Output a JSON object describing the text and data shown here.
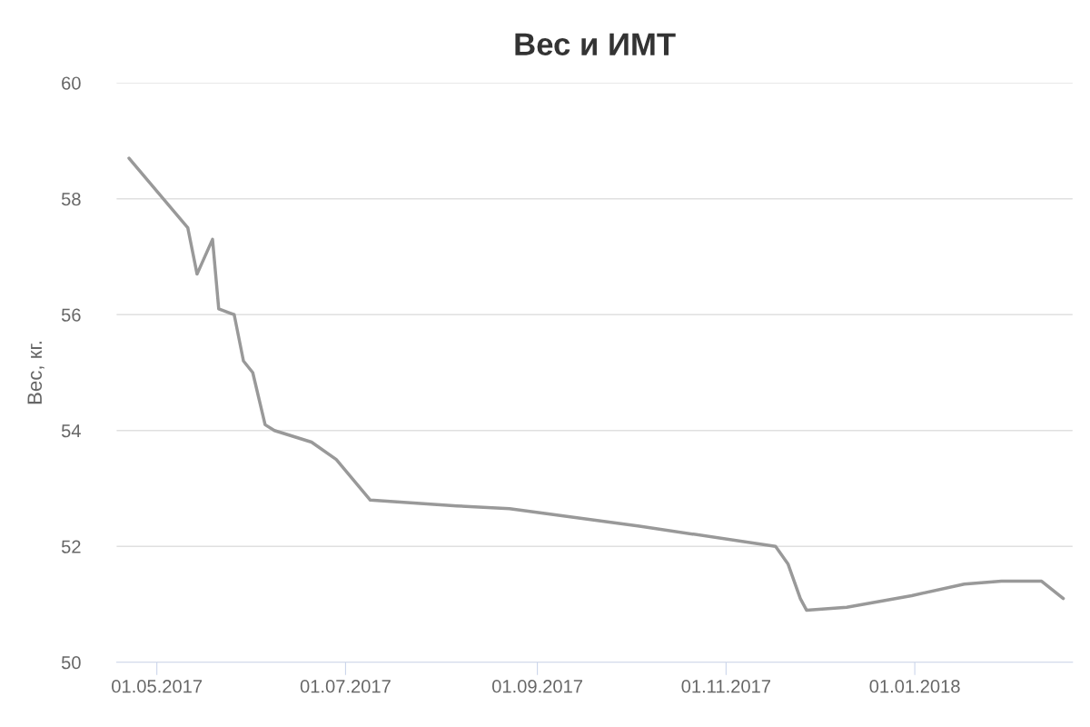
{
  "chart_data": {
    "type": "line",
    "title": "Вес и ИМТ",
    "ylabel": "Вес, кг.",
    "x": [
      "2017-04-22",
      "2017-05-11",
      "2017-05-14",
      "2017-05-19",
      "2017-05-21",
      "2017-05-26",
      "2017-05-29",
      "2017-06-01",
      "2017-06-05",
      "2017-06-08",
      "2017-06-20",
      "2017-06-28",
      "2017-07-09",
      "2017-08-06",
      "2017-08-23",
      "2017-10-04",
      "2017-11-17",
      "2017-11-21",
      "2017-11-25",
      "2017-11-27",
      "2017-12-10",
      "2017-12-31",
      "2018-01-17",
      "2018-01-29",
      "2018-02-11",
      "2018-02-18"
    ],
    "series": [
      {
        "color": "#999999",
        "values": [
          58.7,
          57.5,
          56.7,
          57.3,
          56.1,
          56.0,
          55.2,
          55.0,
          54.1,
          54.0,
          53.8,
          53.5,
          52.8,
          52.7,
          52.65,
          52.35,
          52.0,
          51.7,
          51.1,
          50.9,
          50.95,
          51.15,
          51.35,
          51.4,
          51.4,
          51.1
        ]
      }
    ],
    "xlim": [
      "2017-04-18",
      "2018-02-21"
    ],
    "xticks": [
      {
        "value": "2017-05-01",
        "label": "01.05.2017"
      },
      {
        "value": "2017-07-01",
        "label": "01.07.2017"
      },
      {
        "value": "2017-09-01",
        "label": "01.09.2017"
      },
      {
        "value": "2017-11-01",
        "label": "01.11.2017"
      },
      {
        "value": "2018-01-01",
        "label": "01.01.2018"
      }
    ],
    "ylim": [
      50,
      60
    ],
    "yticks": [
      50,
      52,
      54,
      56,
      58,
      60
    ],
    "grid": "y",
    "legend": false,
    "marker": "none",
    "line_style": "solid"
  }
}
